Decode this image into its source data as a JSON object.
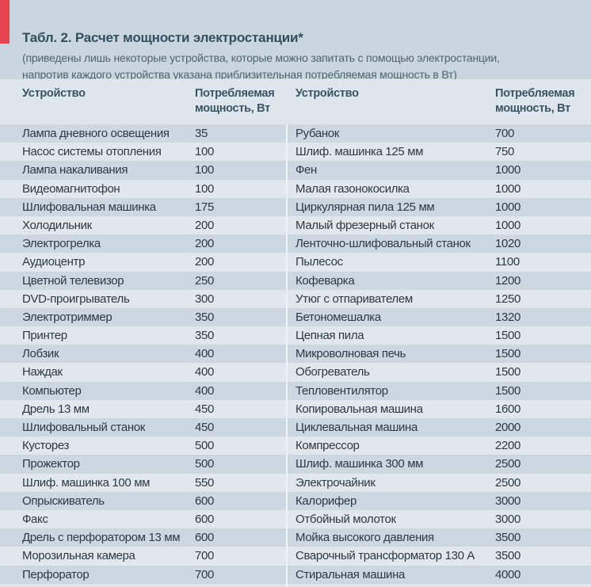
{
  "title": "Табл. 2. Расчет мощности электростанции*",
  "subtitle_lines": [
    "(приведены лишь некоторые устройства, которые можно запитать с помощью электростанции,",
    "напротив каждого устройства указана приблизительная потребляемая мощность в Вт)"
  ],
  "columns": {
    "device": "Устройство",
    "power_line1": "Потребляемая",
    "power_line2": "мощность, Вт"
  },
  "accent_color": "#e8444f",
  "left": [
    [
      "Лампа дневного освещения",
      "35"
    ],
    [
      "Насос системы отопления",
      "100"
    ],
    [
      "Лампа накаливания",
      "100"
    ],
    [
      "Видеомагнитофон",
      "100"
    ],
    [
      "Шлифовальная машинка",
      "175"
    ],
    [
      "Холодильник",
      "200"
    ],
    [
      "Электрогрелка",
      "200"
    ],
    [
      "Аудиоцентр",
      "200"
    ],
    [
      "Цветной телевизор",
      "250"
    ],
    [
      "DVD-проигрыватель",
      "300"
    ],
    [
      "Электротриммер",
      "350"
    ],
    [
      "Принтер",
      "350"
    ],
    [
      "Лобзик",
      "400"
    ],
    [
      "Наждак",
      "400"
    ],
    [
      "Компьютер",
      "400"
    ],
    [
      "Дрель 13 мм",
      "450"
    ],
    [
      "Шлифовальный станок",
      "450"
    ],
    [
      "Кусторез",
      "500"
    ],
    [
      "Прожектор",
      "500"
    ],
    [
      "Шлиф. машинка 100 мм",
      "550"
    ],
    [
      "Опрыскиватель",
      "600"
    ],
    [
      "Факс",
      "600"
    ],
    [
      "Дрель с перфоратором 13 мм",
      "600"
    ],
    [
      "Морозильная камера",
      "700"
    ],
    [
      "Перфоратор",
      "700"
    ]
  ],
  "right": [
    [
      "Рубанок",
      "700"
    ],
    [
      "Шлиф. машинка 125 мм",
      "750"
    ],
    [
      "Фен",
      "1000"
    ],
    [
      "Малая газонокосилка",
      "1000"
    ],
    [
      "Циркулярная пила 125 мм",
      "1000"
    ],
    [
      "Малый фрезерный станок",
      "1000"
    ],
    [
      "Ленточно-шлифовальный станок",
      "1020"
    ],
    [
      "Пылесос",
      "1100"
    ],
    [
      "Кофеварка",
      "1200"
    ],
    [
      "Утюг с отпаривателем",
      "1250"
    ],
    [
      "Бетономешалка",
      "1320"
    ],
    [
      "Цепная пила",
      "1500"
    ],
    [
      "Микроволновая печь",
      "1500"
    ],
    [
      "Обогреватель",
      "1500"
    ],
    [
      "Тепловентилятор",
      "1500"
    ],
    [
      "Копировальная машина",
      "1600"
    ],
    [
      "Циклевальная машина",
      "2000"
    ],
    [
      "Компрессор",
      "2200"
    ],
    [
      "Шлиф. машинка 300 мм",
      "2500"
    ],
    [
      "Электрочайник",
      "2500"
    ],
    [
      "Калорифер",
      "3000"
    ],
    [
      "Отбойный молоток",
      "3000"
    ],
    [
      "Мойка высокого давления",
      "3500"
    ],
    [
      "Сварочный трансформатор 130 А",
      "3500"
    ],
    [
      "Стиральная машина",
      "4000"
    ]
  ]
}
